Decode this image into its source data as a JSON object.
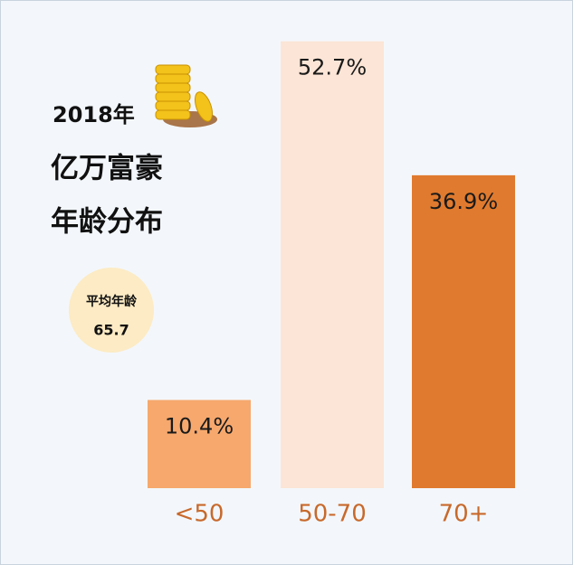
{
  "chart_data": {
    "type": "bar",
    "title_lines": [
      "2018年",
      "亿万富豪",
      "年龄分布"
    ],
    "annotation": {
      "label": "平均年龄",
      "value": 65.7
    },
    "categories": [
      "<50",
      "50-70",
      "70+"
    ],
    "values": [
      10.4,
      52.7,
      36.9
    ],
    "value_labels": [
      "10.4%",
      "52.7%",
      "36.9%"
    ],
    "colors": [
      "#f6a86d",
      "#fce5d6",
      "#e07a2e"
    ],
    "label_color": "#c8692b"
  }
}
